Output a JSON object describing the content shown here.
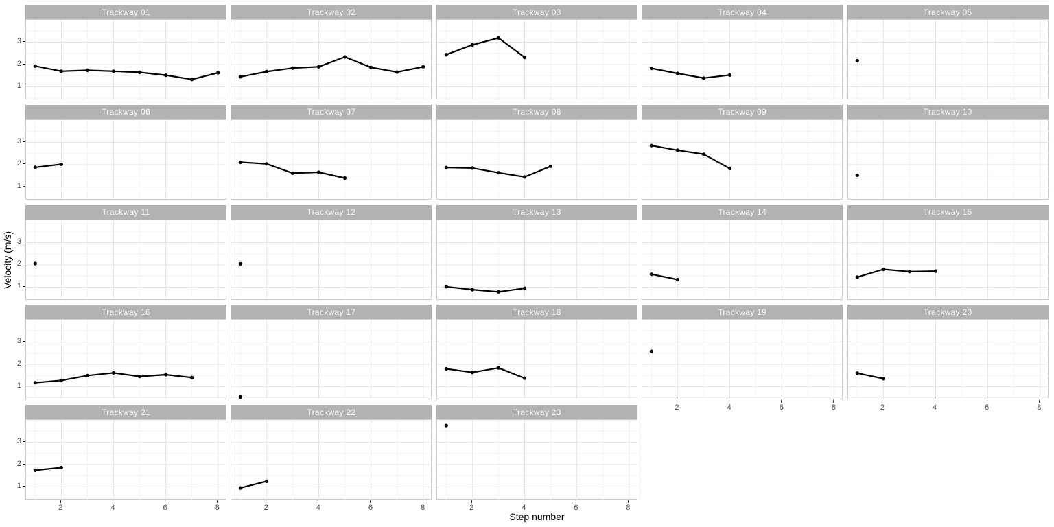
{
  "chart_data": {
    "type": "line",
    "title": "",
    "xlabel": "Step number",
    "ylabel": "Velocity (m/s)",
    "x_ticks": [
      2,
      4,
      6,
      8
    ],
    "y_ticks": [
      1,
      2,
      3
    ],
    "xlim": [
      0.65,
      8.35
    ],
    "ylim": [
      0.4,
      4.0
    ],
    "grid": "major+minor",
    "legend": "none",
    "facet_layout": {
      "columns": 5,
      "rows": 5,
      "facet_count": 23
    },
    "facets": [
      {
        "label": "Trackway 01",
        "x": [
          1,
          2,
          3,
          4,
          5,
          6,
          7,
          8
        ],
        "values": [
          1.93,
          1.7,
          1.74,
          1.7,
          1.65,
          1.52,
          1.33,
          1.63
        ]
      },
      {
        "label": "Trackway 02",
        "x": [
          1,
          2,
          3,
          4,
          5,
          6,
          7,
          8
        ],
        "values": [
          1.45,
          1.68,
          1.84,
          1.9,
          2.34,
          1.87,
          1.66,
          1.9
        ]
      },
      {
        "label": "Trackway 03",
        "x": [
          1,
          2,
          3,
          4
        ],
        "values": [
          2.44,
          2.88,
          3.19,
          2.32
        ]
      },
      {
        "label": "Trackway 04",
        "x": [
          1,
          2,
          3,
          4
        ],
        "values": [
          1.83,
          1.6,
          1.39,
          1.53
        ]
      },
      {
        "label": "Trackway 05",
        "x": [
          1
        ],
        "values": [
          2.17
        ]
      },
      {
        "label": "Trackway 06",
        "x": [
          1,
          2
        ],
        "values": [
          1.88,
          2.02
        ]
      },
      {
        "label": "Trackway 07",
        "x": [
          1,
          2,
          3,
          4,
          5
        ],
        "values": [
          2.11,
          2.04,
          1.62,
          1.66,
          1.4
        ]
      },
      {
        "label": "Trackway 08",
        "x": [
          1,
          2,
          3,
          4,
          5
        ],
        "values": [
          1.87,
          1.85,
          1.64,
          1.45,
          1.93
        ]
      },
      {
        "label": "Trackway 09",
        "x": [
          1,
          2,
          3,
          4
        ],
        "values": [
          2.86,
          2.65,
          2.47,
          1.83
        ]
      },
      {
        "label": "Trackway 10",
        "x": [
          1
        ],
        "values": [
          1.53
        ]
      },
      {
        "label": "Trackway 11",
        "x": [
          1
        ],
        "values": [
          2.06
        ]
      },
      {
        "label": "Trackway 12",
        "x": [
          1
        ],
        "values": [
          2.05
        ]
      },
      {
        "label": "Trackway 13",
        "x": [
          1,
          2,
          3,
          4
        ],
        "values": [
          1.02,
          0.89,
          0.79,
          0.95
        ]
      },
      {
        "label": "Trackway 14",
        "x": [
          1,
          2
        ],
        "values": [
          1.58,
          1.34
        ]
      },
      {
        "label": "Trackway 15",
        "x": [
          1,
          2,
          3,
          4
        ],
        "values": [
          1.45,
          1.8,
          1.7,
          1.72
        ]
      },
      {
        "label": "Trackway 16",
        "x": [
          1,
          2,
          3,
          4,
          5,
          6,
          7
        ],
        "values": [
          1.18,
          1.28,
          1.5,
          1.62,
          1.46,
          1.54,
          1.41
        ]
      },
      {
        "label": "Trackway 17",
        "x": [
          1
        ],
        "values": [
          0.54
        ]
      },
      {
        "label": "Trackway 18",
        "x": [
          1,
          2,
          3,
          4
        ],
        "values": [
          1.8,
          1.64,
          1.84,
          1.38
        ]
      },
      {
        "label": "Trackway 19",
        "x": [
          1
        ],
        "values": [
          2.58
        ]
      },
      {
        "label": "Trackway 20",
        "x": [
          1,
          2
        ],
        "values": [
          1.61,
          1.36
        ]
      },
      {
        "label": "Trackway 21",
        "x": [
          1,
          2
        ],
        "values": [
          1.74,
          1.86
        ]
      },
      {
        "label": "Trackway 22",
        "x": [
          1,
          2
        ],
        "values": [
          0.95,
          1.25
        ]
      },
      {
        "label": "Trackway 23",
        "x": [
          1
        ],
        "values": [
          3.75
        ]
      }
    ],
    "style": {
      "strip_fill": "#b2b2b2",
      "strip_text_color": "#fafafa",
      "panel_border_color": "#cccccc",
      "grid_major_color": "#e4e4e4",
      "grid_minor_color": "#f3f3f3",
      "line_color": "#000000",
      "point_color": "#000000",
      "tick_label_color": "#4d4d4d"
    }
  }
}
